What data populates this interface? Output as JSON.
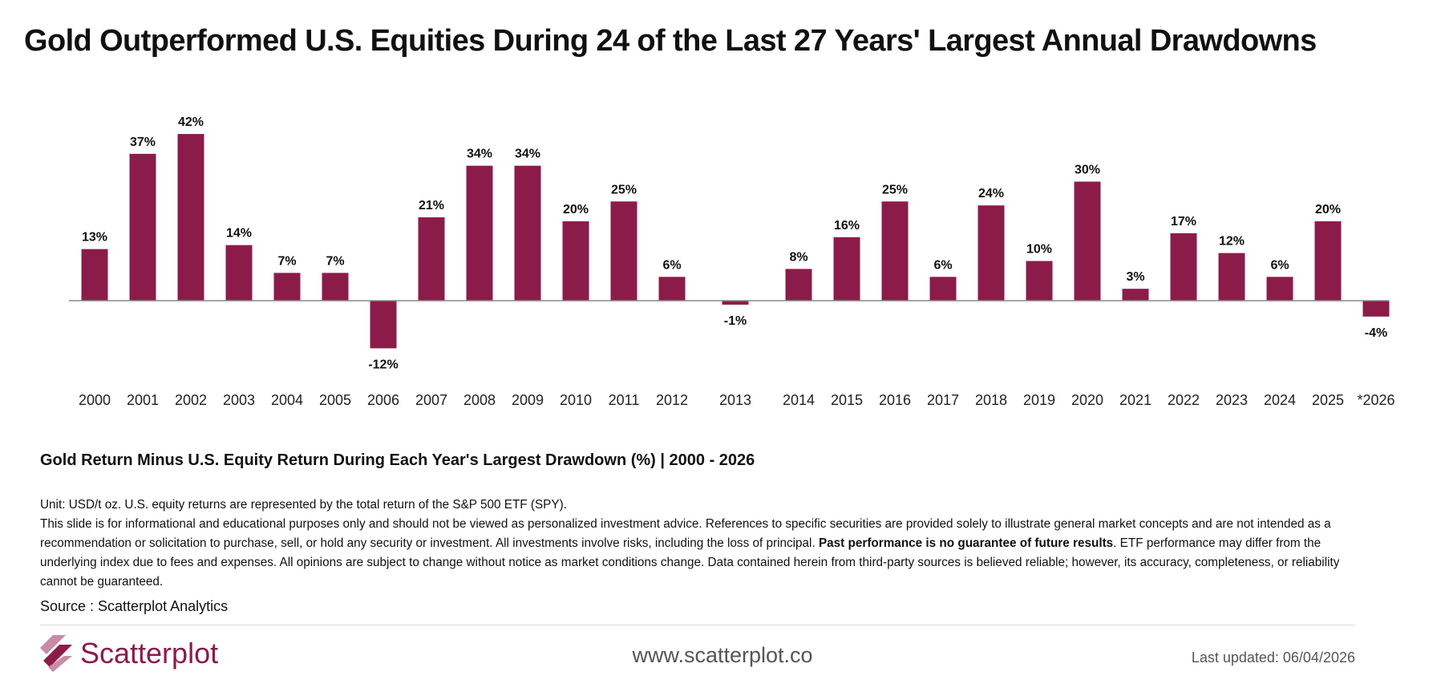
{
  "title": "Gold Outperformed U.S. Equities During 24 of the Last 27 Years' Largest Annual Drawdowns",
  "caption": "Gold Return Minus U.S. Equity Return During Each Year's Largest Drawdown (%) | 2000 - 2026",
  "disclaimer": {
    "unit": "Unit: USD/t oz. U.S. equity returns are represented by the total return of the S&P 500 ETF (SPY).",
    "body_before": "This slide is for informational and educational purposes only and should not be viewed as personalized investment advice. References to specific securities are provided solely to illustrate general market concepts and are not intended as a recommendation or solicitation to purchase, sell, or hold any security or investment. All investments involve risks, including the loss of principal. ",
    "body_bold": "Past performance is no guarantee of future results",
    "body_after": ". ETF performance may differ from the underlying index due to fees and expenses. All opinions are subject to change without notice as market conditions change. Data contained herein from third-party sources is believed reliable; however, its accuracy, completeness, or reliability cannot be guaranteed."
  },
  "source": "Source : Scatterplot Analytics",
  "footer": {
    "brand": "Scatterplot",
    "website": "www.scatterplot.co",
    "last_updated": "Last updated: 06/04/2026"
  },
  "colors": {
    "bar": "#8b1c4a",
    "logo_light": "#c98ba5"
  },
  "chart_data": {
    "type": "bar",
    "categories": [
      "2000",
      "2001",
      "2002",
      "2003",
      "2004",
      "2005",
      "2006",
      "2007",
      "2008",
      "2009",
      "2010",
      "2011",
      "2012",
      "2013",
      "2014",
      "2015",
      "2016",
      "2017",
      "2018",
      "2019",
      "2020",
      "2021",
      "2022",
      "2023",
      "2024",
      "2025",
      "*2026"
    ],
    "values": [
      13,
      37,
      42,
      14,
      7,
      7,
      -12,
      21,
      34,
      34,
      20,
      25,
      6,
      -1,
      8,
      16,
      25,
      6,
      24,
      10,
      30,
      3,
      17,
      12,
      6,
      20,
      -4
    ],
    "labels": [
      "13%",
      "37%",
      "42%",
      "14%",
      "7%",
      "7%",
      "-12%",
      "21%",
      "34%",
      "34%",
      "20%",
      "25%",
      "6%",
      "-1%",
      "8%",
      "16%",
      "25%",
      "6%",
      "24%",
      "10%",
      "30%",
      "3%",
      "17%",
      "12%",
      "6%",
      "20%",
      "-4%"
    ],
    "unit": "%",
    "ylim": [
      -13,
      43
    ],
    "grid": false,
    "legend": "none"
  }
}
